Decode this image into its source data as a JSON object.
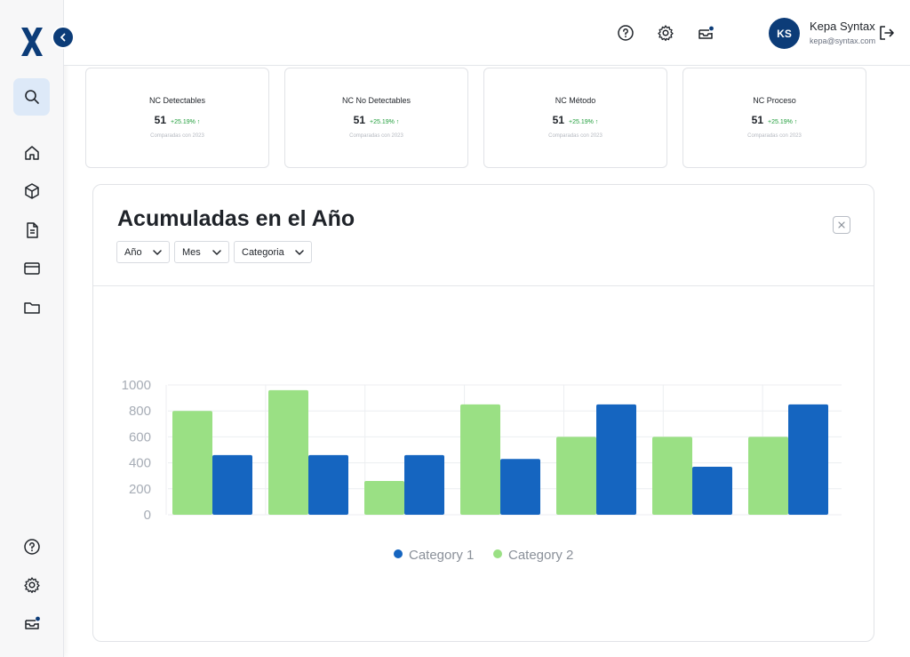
{
  "sidebar": {
    "logo": "X",
    "collapse_icon": "chevron-left-icon",
    "search_icon": "search-icon",
    "nav": [
      {
        "icon": "home-icon"
      },
      {
        "icon": "box-icon"
      },
      {
        "icon": "document-icon"
      },
      {
        "icon": "card-icon"
      },
      {
        "icon": "folder-icon"
      }
    ],
    "footer": [
      {
        "icon": "help-icon"
      },
      {
        "icon": "gear-icon"
      },
      {
        "icon": "inbox-icon"
      }
    ]
  },
  "header": {
    "icons": [
      "help-icon",
      "gear-icon",
      "inbox-icon"
    ],
    "user": {
      "initials": "KS",
      "name": "Kepa Syntax",
      "email": "kepa@syntax.com"
    },
    "logout_icon": "logout-icon"
  },
  "cards": [
    {
      "title": "NC Detectables",
      "value": "51",
      "delta": "+25.19% ↑",
      "note": "Comparadas con 2023"
    },
    {
      "title": "NC No Detectables",
      "value": "51",
      "delta": "+25.19% ↑",
      "note": "Comparadas con 2023"
    },
    {
      "title": "NC Método",
      "value": "51",
      "delta": "+25.19% ↑",
      "note": "Comparadas con 2023"
    },
    {
      "title": "NC Proceso",
      "value": "51",
      "delta": "+25.19% ↑",
      "note": "Comparadas con 2023"
    }
  ],
  "panel": {
    "title": "Acumuladas en el Año",
    "filters": [
      "Año",
      "Mes",
      "Categoria"
    ],
    "close_icon": "close-icon"
  },
  "colors": {
    "brand": "#0c3c78",
    "category1": "#1565c0",
    "category2": "#9ae084",
    "positive": "#1f9d3a"
  },
  "chart_data": {
    "type": "bar",
    "categories": [
      "",
      "",
      "",
      "",
      "",
      "",
      ""
    ],
    "series": [
      {
        "name": "Category 2",
        "color": "#9ae084",
        "values": [
          800,
          960,
          260,
          850,
          600,
          600,
          600
        ]
      },
      {
        "name": "Category 1",
        "color": "#1565c0",
        "values": [
          460,
          460,
          460,
          430,
          850,
          370,
          850
        ]
      }
    ],
    "legend": [
      {
        "name": "Category 1",
        "color": "#1565c0"
      },
      {
        "name": "Category 2",
        "color": "#9ae084"
      }
    ],
    "yticks": [
      "0",
      "200",
      "400",
      "600",
      "800",
      "1000"
    ],
    "ylim": [
      0,
      1000
    ],
    "grid": true,
    "legend_position": "bottom"
  }
}
